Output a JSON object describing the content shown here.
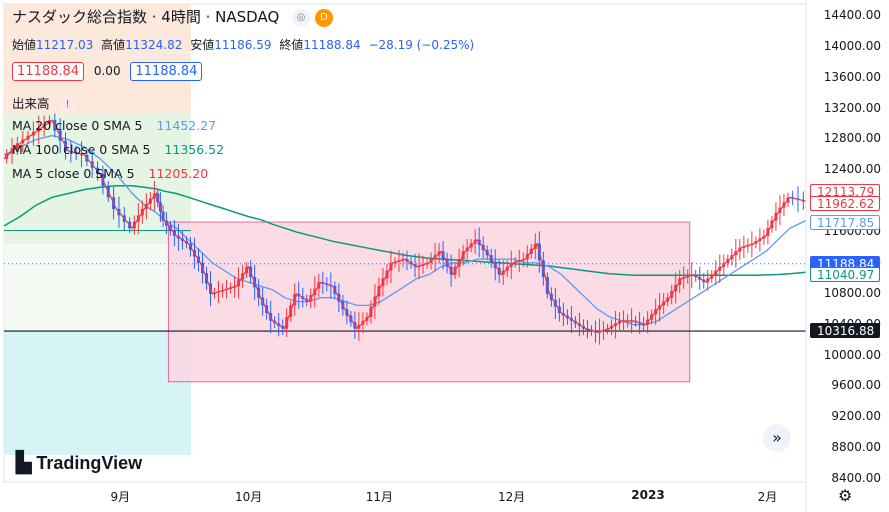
{
  "header": {
    "title": "ナスダック総合指数 · 4時間 · NASDAQ",
    "badge_eye": "◎",
    "badge_d": "D",
    "open_label": "始値",
    "open": "11217.03",
    "high_label": "高値",
    "high": "11324.82",
    "low_label": "安値",
    "low": "11186.59",
    "close_label": "終値",
    "close": "11188.84",
    "change": "−28.19 (−0.25%)",
    "price_box_left": "11188.84",
    "spread": "0.00",
    "price_box_right": "11188.84",
    "volume_label": "出来高",
    "volume_alert": "!"
  },
  "indicators": [
    {
      "label": "MA 20 close 0 SMA 5",
      "value": "11452.27",
      "color": "#5b9cf6"
    },
    {
      "label": "MA 100 close 0 SMA 5",
      "value": "11356.52",
      "color": "#089981"
    },
    {
      "label": "MA 5 close 0 SMA 5",
      "value": "11205.20",
      "color": "#f23645"
    }
  ],
  "y_axis": [
    "14400.00",
    "14000.00",
    "13600.00",
    "13200.00",
    "12800.00",
    "12400.00",
    "12000.00",
    "11600.00",
    "11200.00",
    "10800.00",
    "10400.00",
    "10000.00",
    "9600.00",
    "9200.00",
    "8800.00",
    "8400.00"
  ],
  "y_tags": [
    {
      "text": "12113.79",
      "value": 12113.79,
      "bg": "#ffffff",
      "fg": "#f23645",
      "border": "#f23645"
    },
    {
      "text": "11962.62",
      "value": 11962.62,
      "bg": "#ffffff",
      "fg": "#f23645",
      "border": "#f23645"
    },
    {
      "text": "11717.85",
      "value": 11717.85,
      "bg": "#ffffff",
      "fg": "#5b9cf6",
      "border": "#5b9cf6"
    },
    {
      "text": "11188.84",
      "value": 11188.84,
      "bg": "#2962ff",
      "fg": "#ffffff",
      "border": "#2962ff"
    },
    {
      "text": "11040.97",
      "value": 11040.97,
      "bg": "#ffffff",
      "fg": "#089981",
      "border": "#089981"
    },
    {
      "text": "10316.88",
      "value": 10316.88,
      "bg": "#131722",
      "fg": "#ffffff",
      "border": "#131722"
    }
  ],
  "x_axis": [
    {
      "label": "9月",
      "t": 0.145
    },
    {
      "label": "10月",
      "t": 0.305
    },
    {
      "label": "11月",
      "t": 0.468
    },
    {
      "label": "12月",
      "t": 0.633
    },
    {
      "label": "2023",
      "t": 0.803
    },
    {
      "label": "2月",
      "t": 0.952
    }
  ],
  "logo_text": "TradingView",
  "scroll_button": "»",
  "settings_icon": "⚙",
  "chart_data": {
    "type": "line",
    "title": "ナスダック総合指数",
    "ylim": [
      8400,
      14600
    ],
    "horizontal_lines": [
      10316.88,
      11188.84,
      11620,
      11310
    ],
    "range_box": {
      "t_start": 0.205,
      "t_end": 0.855,
      "y_top": 11730,
      "y_bottom": 9660
    },
    "price_x": [
      0.0,
      0.02,
      0.04,
      0.06,
      0.08,
      0.1,
      0.12,
      0.14,
      0.16,
      0.175,
      0.19,
      0.2,
      0.215,
      0.23,
      0.245,
      0.26,
      0.275,
      0.29,
      0.305,
      0.32,
      0.335,
      0.35,
      0.365,
      0.38,
      0.395,
      0.41,
      0.425,
      0.44,
      0.455,
      0.47,
      0.485,
      0.5,
      0.515,
      0.53,
      0.545,
      0.56,
      0.575,
      0.59,
      0.605,
      0.62,
      0.635,
      0.65,
      0.665,
      0.68,
      0.695,
      0.71,
      0.725,
      0.74,
      0.755,
      0.77,
      0.785,
      0.8,
      0.815,
      0.83,
      0.845,
      0.86,
      0.875,
      0.89,
      0.905,
      0.92,
      0.935,
      0.95,
      0.965,
      0.98,
      1.0
    ],
    "price": [
      12550,
      12750,
      12900,
      13050,
      12650,
      12600,
      12350,
      11900,
      11650,
      11900,
      12100,
      11750,
      11550,
      11450,
      11200,
      10800,
      10850,
      10900,
      11150,
      10750,
      10450,
      10350,
      10800,
      10700,
      10950,
      10900,
      10600,
      10350,
      10500,
      10900,
      11200,
      11250,
      11150,
      11200,
      11350,
      11050,
      11350,
      11500,
      11300,
      11050,
      11200,
      11250,
      11450,
      10800,
      10550,
      10450,
      10350,
      10300,
      10350,
      10450,
      10450,
      10400,
      10600,
      10750,
      11000,
      11050,
      10950,
      11100,
      11250,
      11400,
      11450,
      11550,
      11850,
      12050,
      12000
    ],
    "series": [
      {
        "name": "MA 20",
        "values": [
          12600,
          12700,
          12800,
          12850,
          12800,
          12700,
          12550,
          12350,
          12100,
          11950,
          11850,
          11750,
          11650,
          11500,
          11350,
          11200,
          11100,
          11000,
          10950,
          10900,
          10850,
          10750,
          10700,
          10700,
          10750,
          10750,
          10700,
          10650,
          10650,
          10700,
          10800,
          10900,
          11000,
          11050,
          11150,
          11200,
          11200,
          11250,
          11250,
          11250,
          11250,
          11200,
          11200,
          11150,
          11050,
          10900,
          10750,
          10600,
          10500,
          10450,
          10400,
          10400,
          10450,
          10550,
          10650,
          10750,
          10850,
          10950,
          11050,
          11150,
          11250,
          11350,
          11500,
          11650,
          11750
        ]
      },
      {
        "name": "MA 100",
        "values": [
          11680,
          11800,
          11950,
          12050,
          12100,
          12150,
          12180,
          12200,
          12200,
          12180,
          12160,
          12130,
          12100,
          12050,
          12000,
          11950,
          11900,
          11850,
          11800,
          11760,
          11700,
          11650,
          11600,
          11560,
          11520,
          11480,
          11450,
          11420,
          11390,
          11360,
          11330,
          11300,
          11280,
          11260,
          11250,
          11240,
          11230,
          11220,
          11210,
          11200,
          11190,
          11180,
          11170,
          11160,
          11140,
          11120,
          11100,
          11080,
          11060,
          11050,
          11040,
          11040,
          11040,
          11040,
          11040,
          11040,
          11040,
          11040,
          11040,
          11040,
          11040,
          11045,
          11050,
          11060,
          11080
        ]
      }
    ]
  }
}
